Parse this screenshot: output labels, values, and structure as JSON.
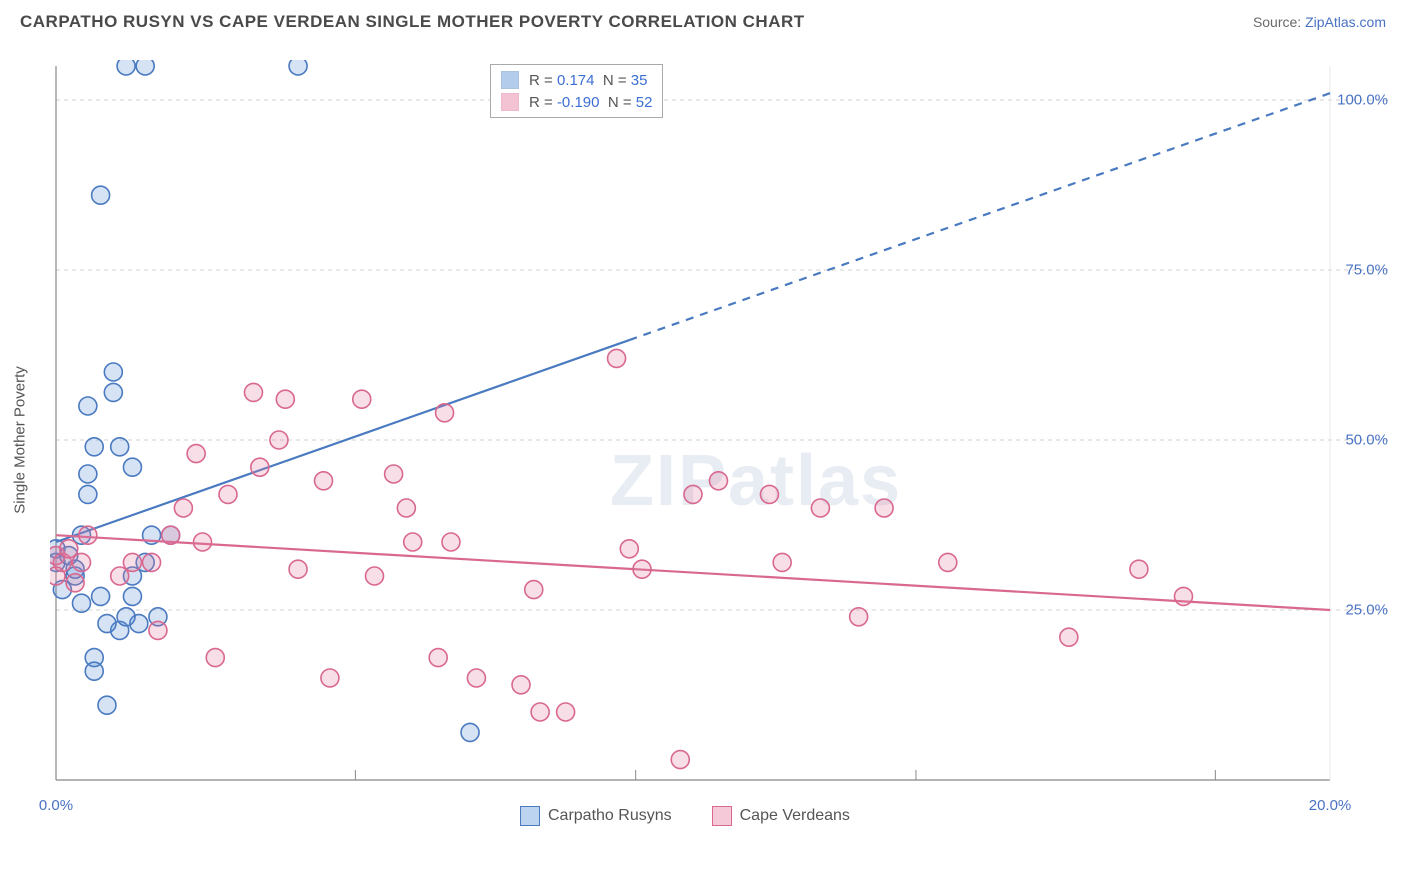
{
  "header": {
    "title": "CARPATHO RUSYN VS CAPE VERDEAN SINGLE MOTHER POVERTY CORRELATION CHART",
    "source_prefix": "Source: ",
    "source_name": "ZipAtlas.com"
  },
  "watermark": "ZIPatlas",
  "chart": {
    "type": "scatter",
    "ylabel": "Single Mother Poverty",
    "xlim": [
      0,
      20
    ],
    "ylim": [
      0,
      105
    ],
    "xtick_values": [
      0,
      20
    ],
    "xtick_labels": [
      "0.0%",
      "20.0%"
    ],
    "ytick_values": [
      25,
      50,
      75,
      100
    ],
    "ytick_labels": [
      "25.0%",
      "50.0%",
      "75.0%",
      "100.0%"
    ],
    "vgrid_values": [
      0,
      4.7,
      9.1,
      13.5,
      18.2
    ],
    "grid_color": "#d0d0d0",
    "axis_color": "#888888",
    "background_color": "#ffffff",
    "marker_radius": 9,
    "marker_stroke_width": 1.6,
    "marker_fill_opacity": 0.25,
    "line_width": 2.2,
    "series": [
      {
        "name": "Carpatho Rusyns",
        "color": "#5a8fd6",
        "stroke": "#4a7ac0",
        "R": "0.174",
        "N": "35",
        "trend": {
          "y_intercept": 35,
          "slope": 3.3,
          "x_solid_end": 9.0,
          "x_dash_end": 20.0
        },
        "points": [
          [
            0.0,
            32
          ],
          [
            0.3,
            30
          ],
          [
            0.1,
            28
          ],
          [
            0.0,
            34
          ],
          [
            0.2,
            33
          ],
          [
            0.4,
            26
          ],
          [
            0.5,
            55
          ],
          [
            0.5,
            45
          ],
          [
            1.1,
            105
          ],
          [
            1.4,
            105
          ],
          [
            3.8,
            105
          ],
          [
            0.6,
            49
          ],
          [
            0.7,
            86
          ],
          [
            0.7,
            27
          ],
          [
            1.0,
            49
          ],
          [
            1.2,
            27
          ],
          [
            0.6,
            18
          ],
          [
            0.6,
            16
          ],
          [
            0.5,
            42
          ],
          [
            1.0,
            22
          ],
          [
            1.3,
            23
          ],
          [
            0.8,
            11
          ],
          [
            1.2,
            46
          ],
          [
            1.5,
            36
          ],
          [
            1.8,
            36
          ],
          [
            1.6,
            24
          ],
          [
            1.1,
            24
          ],
          [
            0.8,
            23
          ],
          [
            1.2,
            30
          ],
          [
            1.4,
            32
          ],
          [
            0.3,
            31
          ],
          [
            6.5,
            7
          ],
          [
            0.9,
            60
          ],
          [
            0.9,
            57
          ],
          [
            0.4,
            36
          ]
        ]
      },
      {
        "name": "Cape Verdeans",
        "color": "#e57ba0",
        "stroke": "#d96890",
        "R": "-0.190",
        "N": "52",
        "trend": {
          "y_intercept": 36,
          "slope": -0.55,
          "x_solid_end": 20.0,
          "x_dash_end": 20.0
        },
        "points": [
          [
            0.0,
            33
          ],
          [
            0.1,
            32
          ],
          [
            0.2,
            34
          ],
          [
            0.0,
            30
          ],
          [
            0.3,
            29
          ],
          [
            0.4,
            32
          ],
          [
            1.0,
            30
          ],
          [
            1.2,
            32
          ],
          [
            1.5,
            32
          ],
          [
            1.6,
            22
          ],
          [
            2.0,
            40
          ],
          [
            2.2,
            48
          ],
          [
            2.3,
            35
          ],
          [
            2.7,
            42
          ],
          [
            3.1,
            57
          ],
          [
            3.6,
            56
          ],
          [
            3.2,
            46
          ],
          [
            3.5,
            50
          ],
          [
            3.8,
            31
          ],
          [
            4.3,
            15
          ],
          [
            4.2,
            44
          ],
          [
            4.8,
            56
          ],
          [
            5.0,
            30
          ],
          [
            5.3,
            45
          ],
          [
            5.6,
            35
          ],
          [
            6.0,
            18
          ],
          [
            6.1,
            54
          ],
          [
            6.2,
            35
          ],
          [
            6.6,
            15
          ],
          [
            7.3,
            14
          ],
          [
            7.5,
            28
          ],
          [
            7.6,
            10
          ],
          [
            8.0,
            10
          ],
          [
            8.8,
            62
          ],
          [
            9.0,
            34
          ],
          [
            9.2,
            31
          ],
          [
            9.8,
            3
          ],
          [
            10.0,
            42
          ],
          [
            10.4,
            44
          ],
          [
            11.2,
            42
          ],
          [
            11.4,
            32
          ],
          [
            12.0,
            40
          ],
          [
            12.6,
            24
          ],
          [
            13.0,
            40
          ],
          [
            14.0,
            32
          ],
          [
            15.9,
            21
          ],
          [
            17.0,
            31
          ],
          [
            17.7,
            27
          ],
          [
            0.5,
            36
          ],
          [
            1.8,
            36
          ],
          [
            2.5,
            18
          ],
          [
            5.5,
            40
          ]
        ]
      }
    ],
    "legend_series": [
      {
        "label": "Carpatho Rusyns",
        "fill": "#bcd4ef",
        "stroke": "#4a7ac0"
      },
      {
        "label": "Cape Verdeans",
        "fill": "#f6c9d8",
        "stroke": "#d96890"
      }
    ]
  }
}
